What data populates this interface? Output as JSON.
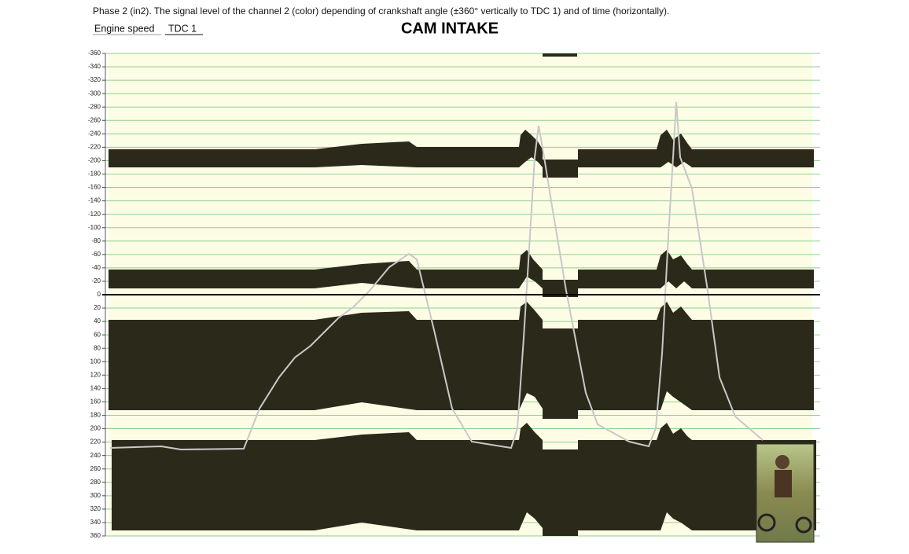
{
  "header": {
    "description": "Phase 2 (in2). The signal level of the channel 2 (color) depending of crankshaft angle (±360° vertically to TDC 1) and of time (horizontally).",
    "tabs": [
      "Engine speed",
      "TDC 1"
    ]
  },
  "chart_data": {
    "type": "signal-map",
    "title": "CAM INTAKE",
    "ylim": [
      -360,
      360
    ],
    "yticks": [
      -360,
      -340,
      -320,
      -300,
      -280,
      -260,
      -240,
      -220,
      -200,
      -180,
      -160,
      -140,
      -120,
      -100,
      -80,
      -60,
      -40,
      -20,
      0,
      20,
      40,
      60,
      80,
      100,
      120,
      140,
      160,
      180,
      200,
      220,
      240,
      260,
      280,
      300,
      320,
      340,
      360
    ],
    "grid": true,
    "grid_color": "#8fd08f",
    "band_color": "#2b2a1a",
    "trace_color": "#c8c8c8"
  }
}
